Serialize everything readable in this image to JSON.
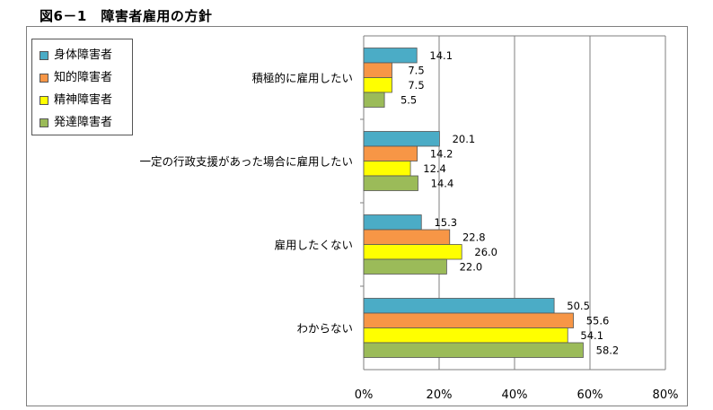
{
  "figure": {
    "title": "図6－1　障害者雇用の方針"
  },
  "colors": {
    "series": [
      "#4bacc6",
      "#f79646",
      "#ffff00",
      "#9bbb59"
    ],
    "bar_stroke": "#555555",
    "grid": "#7f7f7f"
  },
  "chart_data": {
    "type": "bar",
    "orientation": "horizontal",
    "title": "",
    "xlabel": "",
    "ylabel": "",
    "xlim": [
      0,
      80
    ],
    "x_ticks": [
      "0%",
      "20%",
      "40%",
      "60%",
      "80%"
    ],
    "grid": true,
    "legend_position": "top-left",
    "categories": [
      "積極的に雇用したい",
      "一定の行政支援があった場合に雇用したい",
      "雇用したくない",
      "わからない"
    ],
    "series": [
      {
        "name": "身体障害者",
        "values": [
          14.1,
          20.1,
          15.3,
          50.5
        ]
      },
      {
        "name": "知的障害者",
        "values": [
          7.5,
          14.2,
          22.8,
          55.6
        ]
      },
      {
        "name": "精神障害者",
        "values": [
          7.5,
          12.4,
          26.0,
          54.1
        ]
      },
      {
        "name": "発達障害者",
        "values": [
          5.5,
          14.4,
          22.0,
          58.2
        ]
      }
    ],
    "value_labels": [
      [
        "14.1",
        "20.1",
        "15.3",
        "50.5"
      ],
      [
        "7.5",
        "14.2",
        "22.8",
        "55.6"
      ],
      [
        "7.5",
        "12.4",
        "26.0",
        "54.1"
      ],
      [
        "5.5",
        "14.4",
        "22.0",
        "58.2"
      ]
    ]
  }
}
